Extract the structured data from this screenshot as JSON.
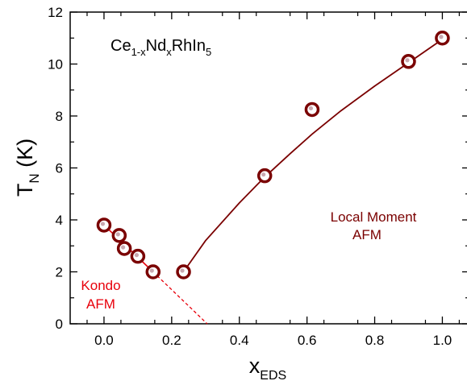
{
  "chart_data": {
    "type": "scatter",
    "title": "",
    "formula": {
      "parts": [
        {
          "text": "Ce",
          "sub": false
        },
        {
          "text": "1-x",
          "sub": true
        },
        {
          "text": "Nd",
          "sub": false
        },
        {
          "text": "x",
          "sub": true
        },
        {
          "text": "RhIn",
          "sub": false
        },
        {
          "text": "5",
          "sub": true
        }
      ]
    },
    "xlabel": {
      "main": "x",
      "sub": "EDS"
    },
    "ylabel": {
      "main": "T",
      "sub": "N",
      "rest": " (K)"
    },
    "xlim": [
      -0.1,
      1.08
    ],
    "ylim": [
      0,
      12
    ],
    "xticks": [
      {
        "v": 0.0,
        "label": "0.0"
      },
      {
        "v": 0.2,
        "label": "0.2"
      },
      {
        "v": 0.4,
        "label": "0.4"
      },
      {
        "v": 0.6,
        "label": "0.6"
      },
      {
        "v": 0.8,
        "label": "0.8"
      },
      {
        "v": 1.0,
        "label": "1.0"
      }
    ],
    "yticks": [
      {
        "v": 0,
        "label": "0"
      },
      {
        "v": 2,
        "label": "2"
      },
      {
        "v": 4,
        "label": "4"
      },
      {
        "v": 6,
        "label": "6"
      },
      {
        "v": 8,
        "label": "8"
      },
      {
        "v": 10,
        "label": "10"
      },
      {
        "v": 12,
        "label": "12"
      }
    ],
    "grid": false,
    "points": [
      {
        "x": 0.0,
        "y": 3.8
      },
      {
        "x": 0.045,
        "y": 3.4
      },
      {
        "x": 0.06,
        "y": 2.9
      },
      {
        "x": 0.1,
        "y": 2.6
      },
      {
        "x": 0.145,
        "y": 2.0
      },
      {
        "x": 0.235,
        "y": 2.0
      },
      {
        "x": 0.475,
        "y": 5.7
      },
      {
        "x": 0.615,
        "y": 8.25
      },
      {
        "x": 0.9,
        "y": 10.1
      },
      {
        "x": 1.0,
        "y": 11.0
      }
    ],
    "fits": {
      "kondo_line": {
        "x": [
          0.0,
          0.145
        ],
        "y": [
          3.8,
          2.0
        ],
        "color": "#e8000b"
      },
      "kondo_extrapolation": {
        "x": [
          0.145,
          0.305
        ],
        "y": [
          2.0,
          0.0
        ],
        "color": "#e8000b"
      },
      "local_moment_curve": {
        "x": [
          0.235,
          0.3,
          0.4,
          0.475,
          0.55,
          0.615,
          0.7,
          0.8,
          0.9,
          1.0
        ],
        "y": [
          2.0,
          3.2,
          4.65,
          5.65,
          6.55,
          7.3,
          8.2,
          9.15,
          10.05,
          10.95
        ],
        "color": "#7a0000"
      }
    },
    "annotations": {
      "kondo": {
        "lines": [
          "Kondo",
          "AFM"
        ],
        "color": "#e8000b"
      },
      "local_moment": {
        "lines": [
          "Local Moment",
          "AFM"
        ],
        "color": "#7a0000"
      }
    },
    "marker_color": "#7a0000"
  }
}
